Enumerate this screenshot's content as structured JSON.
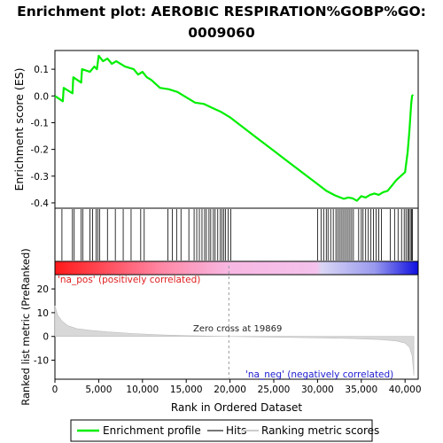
{
  "chart_data": {
    "type": "line",
    "title_line1": "Enrichment plot: AEROBIC RESPIRATION%GOBP%GO:",
    "title_line2": "0009060",
    "es_panel": {
      "ylabel": "Enrichment score (ES)",
      "xlim": [
        0,
        41500
      ],
      "ylim": [
        -0.42,
        0.17
      ],
      "yticks": [
        0.1,
        0.0,
        -0.1,
        -0.2,
        -0.3,
        -0.4
      ],
      "ytick_labels": [
        "0.1",
        "0.0",
        "-0.1",
        "-0.2",
        "-0.3",
        "-0.4"
      ],
      "series": [
        {
          "name": "Enrichment profile",
          "color": "#00ee00",
          "x": [
            0,
            900,
            1000,
            2000,
            2100,
            3000,
            3100,
            4000,
            4500,
            4800,
            5000,
            5500,
            6000,
            6500,
            7000,
            8000,
            9000,
            9500,
            10000,
            10500,
            11000,
            12000,
            13000,
            14000,
            15000,
            16000,
            17000,
            18000,
            19000,
            20000,
            21000,
            22000,
            23000,
            24000,
            25000,
            26000,
            27000,
            28000,
            29000,
            30000,
            31000,
            32000,
            33000,
            33500,
            34000,
            34500,
            35000,
            35500,
            36000,
            36500,
            37000,
            37500,
            38000,
            38500,
            39000,
            39500,
            40000,
            40300,
            40500,
            40600,
            40700,
            40800,
            40900
          ],
          "y": [
            0.0,
            -0.02,
            0.03,
            0.01,
            0.07,
            0.05,
            0.1,
            0.09,
            0.11,
            0.1,
            0.15,
            0.13,
            0.14,
            0.12,
            0.13,
            0.11,
            0.1,
            0.08,
            0.09,
            0.07,
            0.06,
            0.03,
            0.025,
            0.015,
            -0.005,
            -0.025,
            -0.03,
            -0.045,
            -0.06,
            -0.08,
            -0.105,
            -0.13,
            -0.155,
            -0.18,
            -0.205,
            -0.23,
            -0.255,
            -0.28,
            -0.305,
            -0.33,
            -0.355,
            -0.372,
            -0.385,
            -0.38,
            -0.383,
            -0.392,
            -0.375,
            -0.38,
            -0.37,
            -0.365,
            -0.37,
            -0.36,
            -0.355,
            -0.335,
            -0.315,
            -0.3,
            -0.285,
            -0.21,
            -0.13,
            -0.08,
            -0.03,
            0.0,
            0.005
          ]
        }
      ]
    },
    "hits_panel": {
      "legend_name": "Hits",
      "hit_positions": [
        800,
        2000,
        2200,
        3000,
        3200,
        4000,
        4300,
        4700,
        4900,
        5100,
        6000,
        6900,
        7800,
        8700,
        9800,
        10200,
        12900,
        13400,
        13900,
        14400,
        15300,
        15900,
        16200,
        16500,
        16800,
        17100,
        17300,
        17600,
        17800,
        18100,
        18300,
        18600,
        18900,
        19100,
        19300,
        19500,
        19800,
        20100,
        30000,
        30400,
        30700,
        31000,
        31200,
        31500,
        31800,
        32100,
        32300,
        32500,
        32700,
        32900,
        33100,
        33300,
        33500,
        33700,
        33900,
        34100,
        34700,
        35000,
        35200,
        35500,
        35800,
        36100,
        36400,
        36700,
        37000,
        37300,
        38300,
        38800,
        39200,
        39600,
        39900,
        40100,
        40300,
        40450,
        40600,
        40750,
        40850
      ]
    },
    "ranked_panel": {
      "ylabel": "Ranked list metric (PreRanked)",
      "legend_name": "Ranking metric scores",
      "ylim": [
        -18,
        26
      ],
      "yticks": [
        20,
        10,
        0,
        -10
      ],
      "ytick_labels": [
        "20",
        "10",
        "0",
        "-10"
      ],
      "x": [
        0,
        300,
        800,
        1500,
        2500,
        4000,
        6000,
        9000,
        12000,
        15000,
        18000,
        19869,
        22000,
        26000,
        30000,
        34000,
        37000,
        39000,
        40000,
        40500,
        40800,
        40950,
        41000
      ],
      "y": [
        13,
        9,
        6.5,
        4.5,
        3.3,
        2.6,
        1.9,
        1.2,
        0.7,
        0.35,
        0.12,
        0.0,
        -0.15,
        -0.35,
        -0.6,
        -0.9,
        -1.3,
        -1.9,
        -2.8,
        -4.5,
        -8,
        -14,
        -16.5
      ],
      "zero_cross_label": "Zero cross at 19869",
      "zero_cross_x": 19869,
      "pos_label": "'na_pos' (positively correlated)",
      "neg_label": "'na_neg' (negatively correlated)"
    },
    "xaxis": {
      "xlabel": "Rank in Ordered Dataset",
      "xticks": [
        0,
        5000,
        10000,
        15000,
        20000,
        25000,
        30000,
        35000,
        40000
      ],
      "xtick_labels": [
        "0",
        "5,000",
        "10,000",
        "15,000",
        "20,000",
        "25,000",
        "30,000",
        "35,000",
        "40,000"
      ]
    },
    "legend": {
      "placement": "bottom",
      "entries": [
        "Enrichment profile",
        "Hits",
        "Ranking metric scores"
      ]
    }
  }
}
